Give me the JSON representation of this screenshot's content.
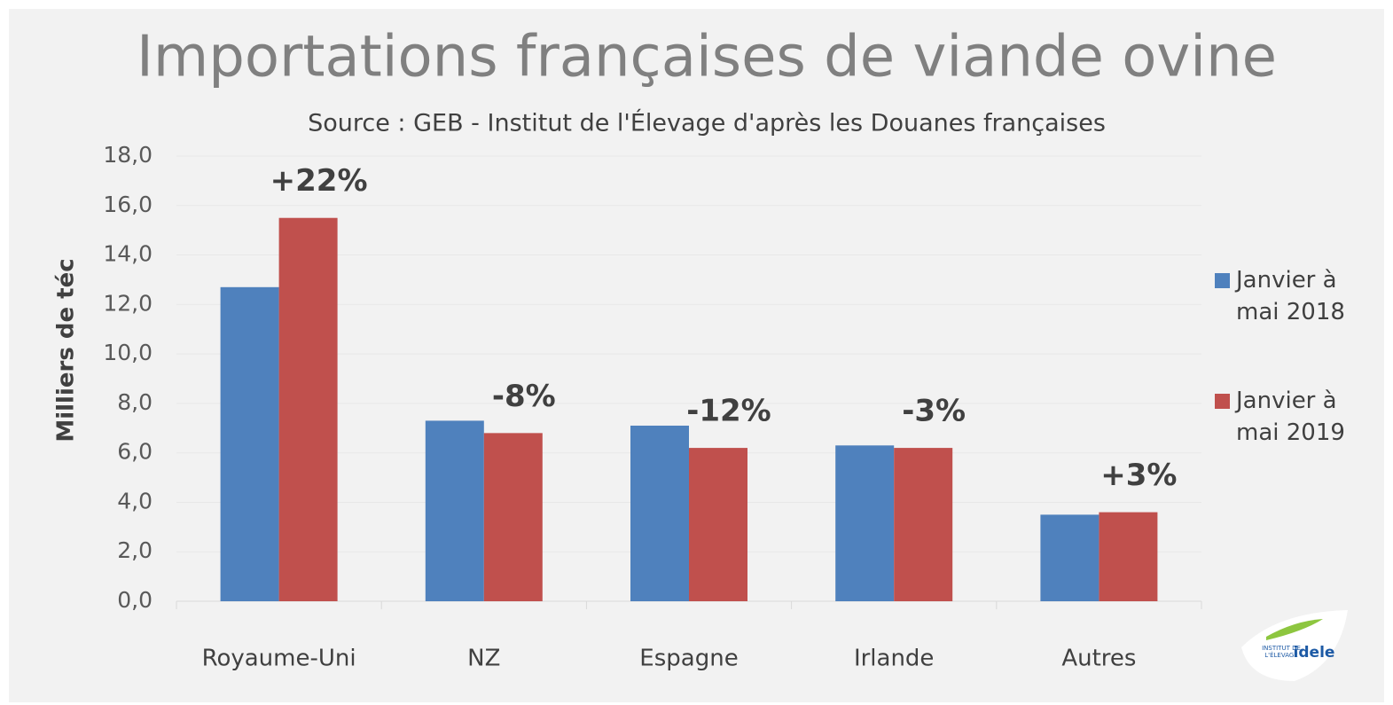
{
  "chart_data": {
    "type": "bar",
    "title": "Importations françaises de viande ovine",
    "subtitle": "Source : GEB - Institut de l'Élevage d'après les Douanes françaises",
    "y_label": "Milliers de téc",
    "categories": [
      "Royaume-Uni",
      "NZ",
      "Espagne",
      "Irlande",
      "Autres"
    ],
    "series": [
      {
        "name": "Janvier à mai 2018",
        "color": "#4f81bd",
        "values": [
          12.7,
          7.3,
          7.1,
          6.3,
          3.5
        ]
      },
      {
        "name": "Janvier à mai 2019",
        "color": "#c0504d",
        "values": [
          15.5,
          6.8,
          6.2,
          6.2,
          3.6
        ]
      }
    ],
    "annotations": [
      "+22%",
      "-8%",
      "-12%",
      "-3%",
      "+3%"
    ],
    "ylim": [
      0,
      18
    ],
    "yticks": [
      {
        "value": 0,
        "label": "0,0"
      },
      {
        "value": 2,
        "label": "2,0"
      },
      {
        "value": 4,
        "label": "4,0"
      },
      {
        "value": 6,
        "label": "6,0"
      },
      {
        "value": 8,
        "label": "8,0"
      },
      {
        "value": 10,
        "label": "10,0"
      },
      {
        "value": 12,
        "label": "12,0"
      },
      {
        "value": 14,
        "label": "14,0"
      },
      {
        "value": 16,
        "label": "16,0"
      },
      {
        "value": 18,
        "label": "18,0"
      }
    ],
    "grid": true,
    "legend": "right",
    "logo": {
      "line1": "INSTITUT DE",
      "line2": "L'ÉLEVAGE",
      "name": "idele"
    }
  }
}
